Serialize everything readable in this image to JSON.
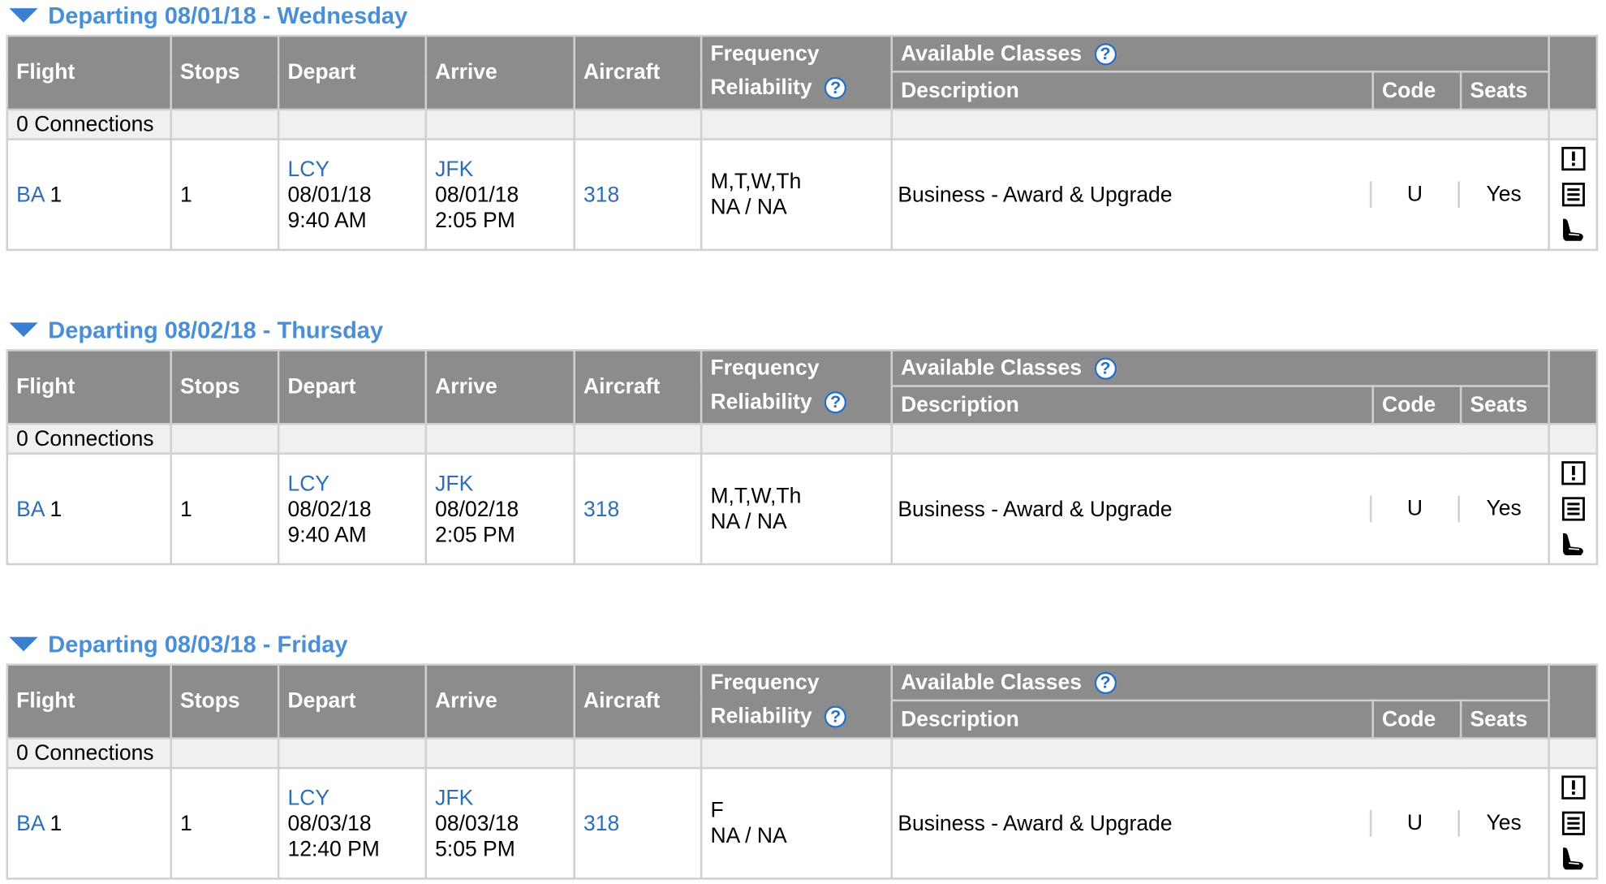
{
  "headers": {
    "flight": "Flight",
    "stops": "Stops",
    "depart": "Depart",
    "arrive": "Arrive",
    "aircraft": "Aircraft",
    "frequency": "Frequency",
    "reliability": "Reliability",
    "available_classes": "Available Classes",
    "description": "Description",
    "code": "Code",
    "seats": "Seats",
    "help_glyph": "?"
  },
  "sections": [
    {
      "title": "Departing 08/01/18 - Wednesday",
      "connections": "0 Connections",
      "flight": {
        "airline": "BA",
        "number": "1",
        "stops": "1",
        "depart_airport": "LCY",
        "depart_date": "08/01/18",
        "depart_time": "9:40 AM",
        "arrive_airport": "JFK",
        "arrive_date": "08/01/18",
        "arrive_time": "2:05 PM",
        "aircraft": "318",
        "frequency": "M,T,W,Th",
        "reliability": "NA / NA",
        "class_description": "Business - Award & Upgrade",
        "class_code": "U",
        "class_seats": "Yes"
      }
    },
    {
      "title": "Departing 08/02/18 - Thursday",
      "connections": "0 Connections",
      "flight": {
        "airline": "BA",
        "number": "1",
        "stops": "1",
        "depart_airport": "LCY",
        "depart_date": "08/02/18",
        "depart_time": "9:40 AM",
        "arrive_airport": "JFK",
        "arrive_date": "08/02/18",
        "arrive_time": "2:05 PM",
        "aircraft": "318",
        "frequency": "M,T,W,Th",
        "reliability": "NA / NA",
        "class_description": "Business - Award & Upgrade",
        "class_code": "U",
        "class_seats": "Yes"
      }
    },
    {
      "title": "Departing 08/03/18 - Friday",
      "connections": "0 Connections",
      "flight": {
        "airline": "BA",
        "number": "1",
        "stops": "1",
        "depart_airport": "LCY",
        "depart_date": "08/03/18",
        "depart_time": "12:40 PM",
        "arrive_airport": "JFK",
        "arrive_date": "08/03/18",
        "arrive_time": "5:05 PM",
        "aircraft": "318",
        "frequency": "F",
        "reliability": "NA / NA",
        "class_description": "Business - Award & Upgrade",
        "class_code": "U",
        "class_seats": "Yes"
      }
    }
  ],
  "icons": [
    "alert-icon",
    "notes-icon",
    "seat-icon"
  ],
  "colors": {
    "link": "#2e6db8",
    "title": "#4a8fd6",
    "header_bg": "#8c8c8c"
  }
}
